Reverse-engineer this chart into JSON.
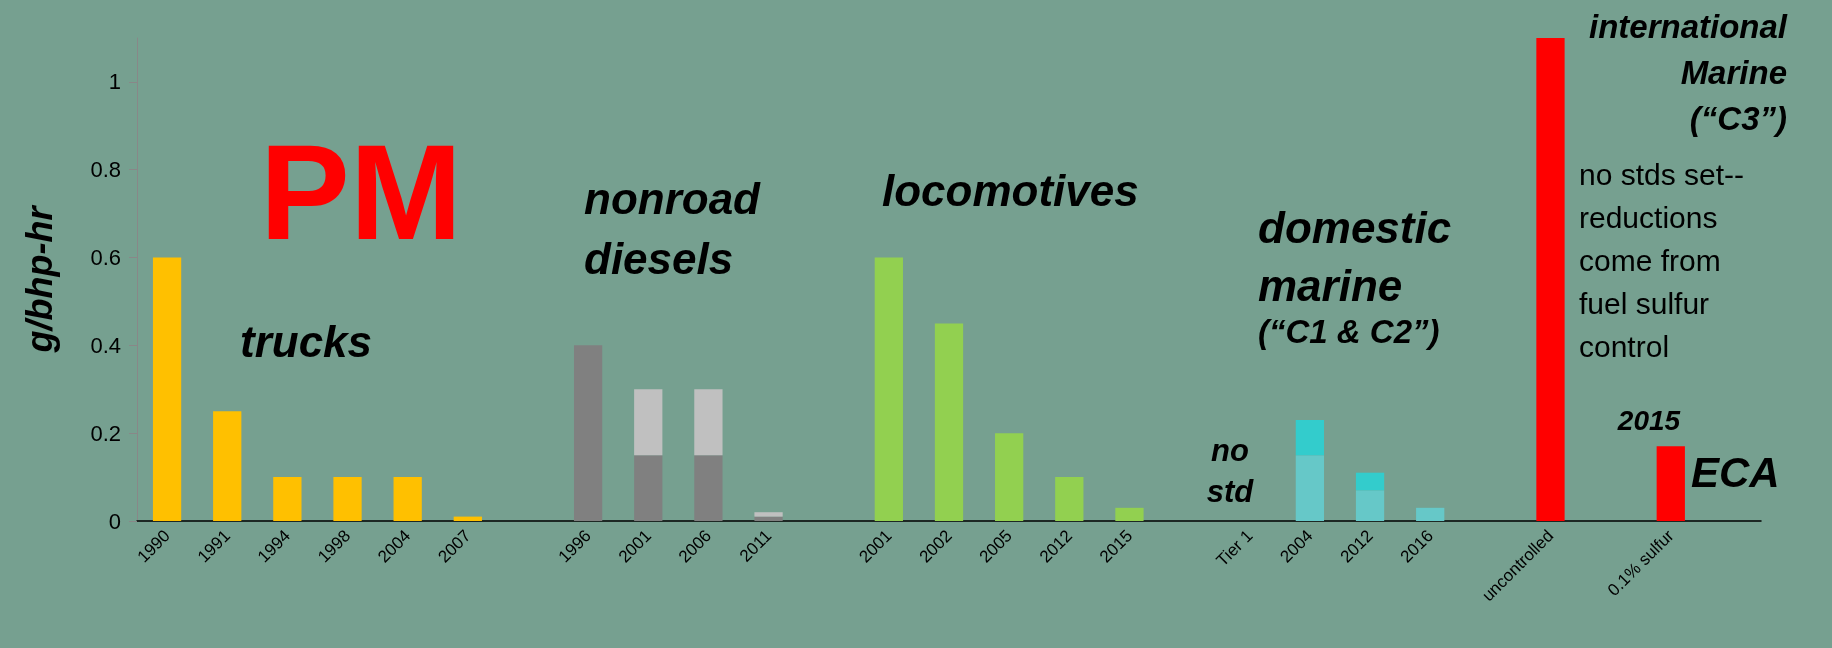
{
  "chart_data": {
    "type": "bar",
    "stacked": true,
    "title": "PM",
    "ylabel": "g/bhp-hr",
    "categories": [
      "1990",
      "1991",
      "1994",
      "1998",
      "2004",
      "2007",
      null,
      "1996",
      "2001",
      "2006",
      "2011",
      null,
      "2001",
      "2002",
      "2005",
      "2012",
      "2015",
      null,
      "Tier 1",
      "2004",
      "2012",
      "2016",
      null,
      "uncontrolled",
      null,
      "0.1% sulfur",
      null
    ],
    "series": [
      {
        "values": [
          0.6,
          0.25,
          0.1,
          0.1,
          0.1,
          0.01,
          null,
          0.4,
          0.15,
          0.15,
          0.01,
          null,
          0.6,
          0.45,
          0.2,
          0.1,
          0.03,
          null,
          null,
          0.15,
          0.07,
          0.03,
          null,
          1.1,
          null,
          0.17,
          null
        ],
        "colors": [
          "#ffc000",
          "#ffc000",
          "#ffc000",
          "#ffc000",
          "#ffc000",
          "#ffc000",
          null,
          "#808080",
          "#808080",
          "#808080",
          "#808080",
          null,
          "#92d050",
          "#92d050",
          "#92d050",
          "#92d050",
          "#92d050",
          null,
          null,
          "#66c8c8",
          "#66c8c8",
          "#66c8c8",
          null,
          "#ff0000",
          null,
          "#ff0000",
          null
        ]
      },
      {
        "values": [
          null,
          null,
          null,
          null,
          null,
          null,
          null,
          null,
          0.15,
          0.15,
          0.01,
          null,
          null,
          null,
          null,
          null,
          null,
          null,
          null,
          0.08,
          0.04,
          null,
          null,
          null,
          null,
          null,
          null
        ],
        "colors": [
          null,
          null,
          null,
          null,
          null,
          null,
          null,
          null,
          "#c0c0c0",
          "#c0c0c0",
          "#c0c0c0",
          null,
          null,
          null,
          null,
          null,
          null,
          null,
          null,
          "#33cccc",
          "#33cccc",
          null,
          null,
          null,
          null,
          null,
          null
        ]
      }
    ],
    "ylim": [
      0,
      1.1
    ],
    "yticks": [
      0,
      0.2,
      0.4,
      0.6,
      0.8,
      1
    ],
    "grid": false,
    "annotations": [
      "trucks",
      "nonroad\ndiesels",
      "locomotives",
      "domestic\nmarine",
      "(“C1 & C2”)",
      "no\nstd",
      "international\nMarine\n(“C3”)",
      "no stds set--\nreductions\ncome from\nfuel sulfur\ncontrol",
      "2015",
      "ECA"
    ]
  }
}
